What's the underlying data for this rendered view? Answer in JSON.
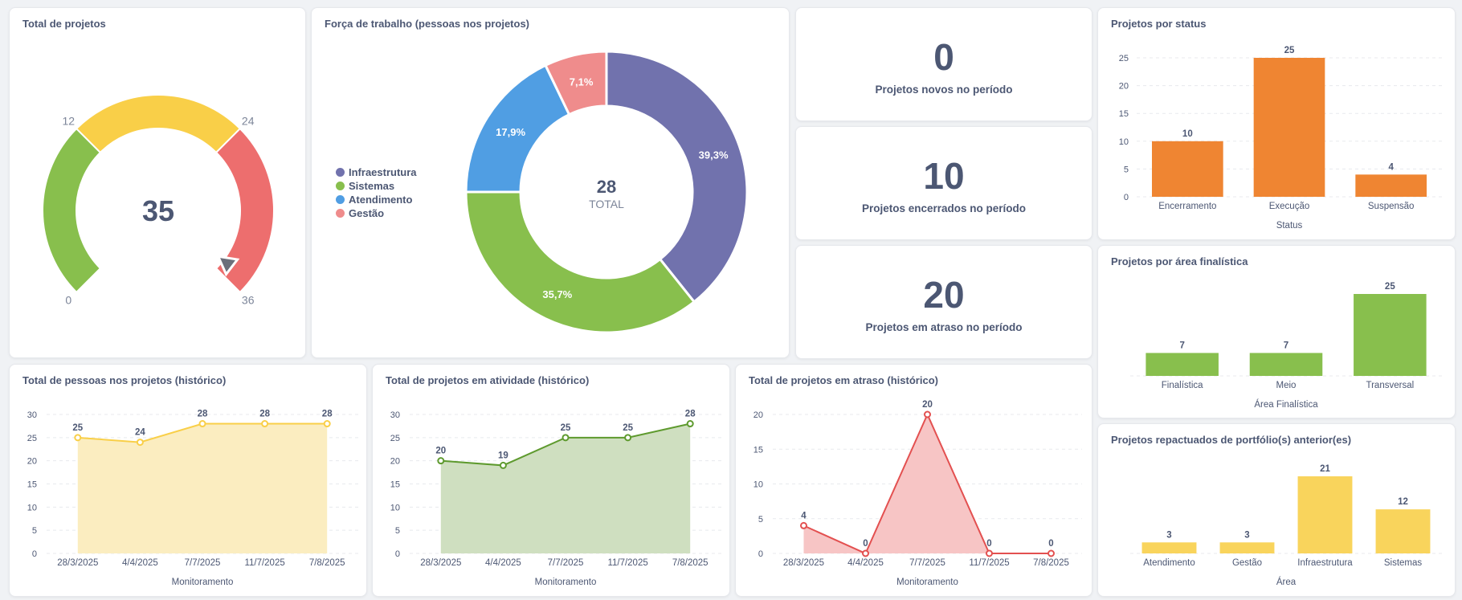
{
  "cards": {
    "total_projetos": {
      "title": "Total de projetos",
      "value": "35",
      "gauge": {
        "min": 0,
        "max": 36,
        "ranges": [
          {
            "from": 0,
            "to": 12,
            "color": "#88bf4d"
          },
          {
            "from": 12,
            "to": 24,
            "color": "#f9cf48"
          },
          {
            "from": 24,
            "to": 36,
            "color": "#ed6e6e"
          }
        ],
        "labels": [
          "0",
          "12",
          "24",
          "36"
        ]
      }
    },
    "forca_trabalho": {
      "title": "Força de trabalho (pessoas nos projetos)",
      "total_value": "28",
      "total_label": "TOTAL",
      "legend": [
        {
          "name": "Infraestrutura",
          "color": "#7172ad"
        },
        {
          "name": "Sistemas",
          "color": "#88bf4d"
        },
        {
          "name": "Atendimento",
          "color": "#509ee3"
        },
        {
          "name": "Gestão",
          "color": "#ef8c8c"
        }
      ]
    },
    "novos": {
      "value": "0",
      "label": "Projetos novos no período"
    },
    "encerrados": {
      "value": "10",
      "label": "Projetos encerrados no período"
    },
    "atraso": {
      "value": "20",
      "label": "Projetos em atraso no período"
    },
    "status": {
      "title": "Projetos por status"
    },
    "area_finalistica": {
      "title": "Projetos por área finalística"
    },
    "repactuados": {
      "title": "Projetos repactuados de portfólio(s) anterior(es)"
    },
    "pessoas_hist": {
      "title": "Total de pessoas nos projetos (histórico)"
    },
    "atividade_hist": {
      "title": "Total de projetos em atividade (histórico)"
    },
    "atraso_hist": {
      "title": "Total de projetos em atraso (histórico)"
    }
  },
  "chart_data": [
    {
      "id": "gauge",
      "type": "gauge",
      "value": 35,
      "min": 0,
      "max": 36
    },
    {
      "id": "donut",
      "type": "pie",
      "categories": [
        "Infraestrutura",
        "Sistemas",
        "Atendimento",
        "Gestão"
      ],
      "values": [
        11,
        10,
        5,
        2
      ],
      "labels": [
        "39,3%",
        "35,7%",
        "17,9%",
        "7,1%"
      ],
      "colors": [
        "#7172ad",
        "#88bf4d",
        "#509ee3",
        "#ef8c8c"
      ]
    },
    {
      "id": "status",
      "type": "bar",
      "categories": [
        "Encerramento",
        "Execução",
        "Suspensão"
      ],
      "values": [
        10,
        25,
        4
      ],
      "xlabel": "Status",
      "ylabel": "",
      "ylim": [
        0,
        25
      ],
      "yticks": [
        0,
        5,
        10,
        15,
        20,
        25
      ],
      "color": "#ef8532",
      "grid": true
    },
    {
      "id": "area",
      "type": "bar",
      "categories": [
        "Finalística",
        "Meio",
        "Transversal"
      ],
      "values": [
        7,
        7,
        25
      ],
      "xlabel": "Área Finalística",
      "ylim": [
        0,
        25
      ],
      "color": "#88bf4d",
      "grid": false
    },
    {
      "id": "repact",
      "type": "bar",
      "categories": [
        "Atendimento",
        "Gestão",
        "Infraestrutura",
        "Sistemas"
      ],
      "values": [
        3,
        3,
        21,
        12
      ],
      "xlabel": "Área",
      "ylim": [
        0,
        21
      ],
      "color": "#f9d45c",
      "grid": false
    },
    {
      "id": "pessoas",
      "type": "area",
      "categories": [
        "28/3/2025",
        "4/4/2025",
        "7/7/2025",
        "11/7/2025",
        "7/8/2025"
      ],
      "values": [
        25,
        24,
        28,
        28,
        28
      ],
      "xlabel": "Monitoramento",
      "ylim": [
        0,
        30
      ],
      "yticks": [
        0,
        5,
        10,
        15,
        20,
        25,
        30
      ],
      "color": "#f9cf48",
      "fill": "#fbedc0"
    },
    {
      "id": "atividade",
      "type": "area",
      "categories": [
        "28/3/2025",
        "4/4/2025",
        "7/7/2025",
        "11/7/2025",
        "7/8/2025"
      ],
      "values": [
        20,
        19,
        25,
        25,
        28
      ],
      "xlabel": "Monitoramento",
      "ylim": [
        0,
        30
      ],
      "yticks": [
        0,
        5,
        10,
        15,
        20,
        25,
        30
      ],
      "color": "#5e9a2e",
      "fill": "#cfdfc0"
    },
    {
      "id": "atrasohist",
      "type": "area",
      "categories": [
        "28/3/2025",
        "4/4/2025",
        "7/7/2025",
        "11/7/2025",
        "7/8/2025"
      ],
      "values": [
        4,
        0,
        20,
        0,
        0
      ],
      "xlabel": "Monitoramento",
      "ylim": [
        0,
        20
      ],
      "yticks": [
        0,
        5,
        10,
        15,
        20
      ],
      "color": "#e35050",
      "fill": "#f7c5c5"
    }
  ]
}
